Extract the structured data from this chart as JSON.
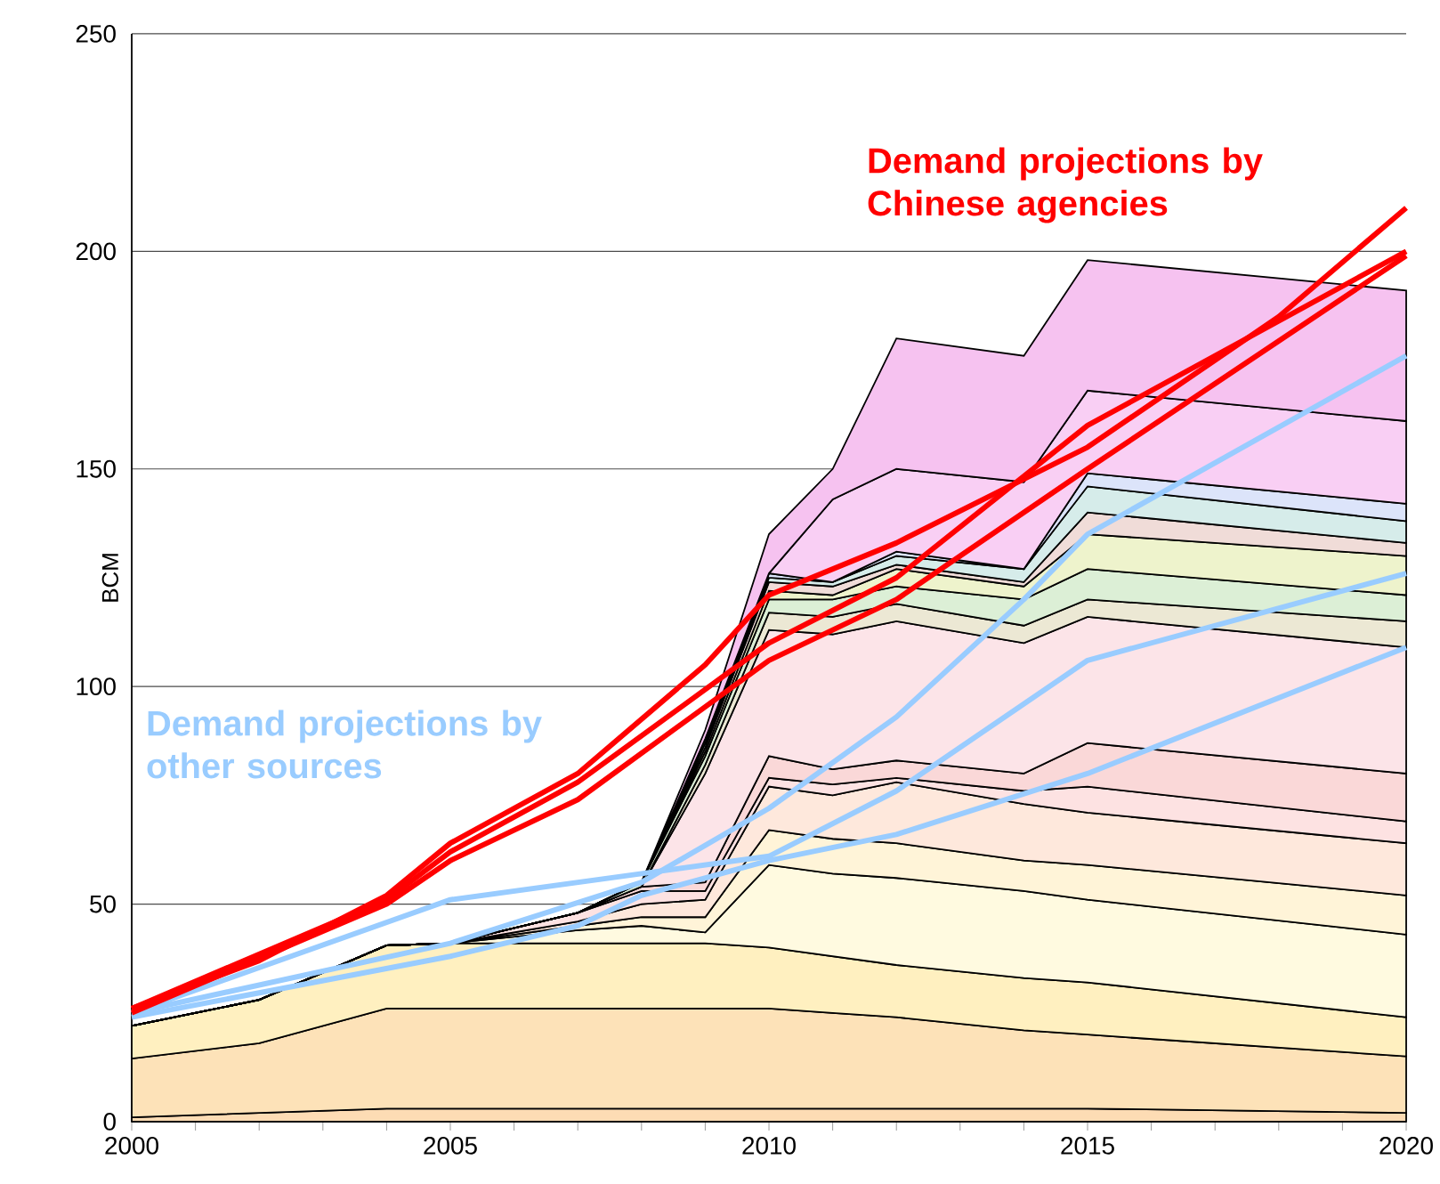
{
  "chart_data": {
    "type": "area",
    "stacked": true,
    "ylabel": "BCM",
    "annotations": [
      "Demand projections by Chinese agencies",
      "Demand projections by other sources"
    ],
    "x": [
      2000,
      2002,
      2004,
      2005,
      2007,
      2008,
      2009,
      2010,
      2011,
      2012,
      2014,
      2015,
      2020
    ],
    "xlim": [
      2000,
      2020
    ],
    "xticks": [
      2000,
      2005,
      2010,
      2015,
      2020
    ],
    "ylim": [
      0,
      250
    ],
    "yticks": [
      0,
      50,
      100,
      150,
      200,
      250
    ],
    "grid": "y",
    "series": [
      {
        "color": "#fddcb4",
        "values": [
          1,
          2,
          3,
          3,
          3,
          3,
          3,
          3,
          3,
          3,
          3,
          3,
          2
        ]
      },
      {
        "color": "#fde2b8",
        "values": [
          13.5,
          16,
          23,
          23,
          23,
          23,
          23,
          23,
          22,
          21,
          18,
          17,
          13
        ]
      },
      {
        "color": "#fff0c0",
        "values": [
          7.5,
          10,
          14.5,
          15,
          15,
          15,
          15,
          14,
          13,
          12,
          12,
          12,
          9
        ]
      },
      {
        "color": "#fffae0",
        "values": [
          0,
          0,
          0,
          0,
          3,
          4,
          2.5,
          19,
          19,
          20,
          20,
          19,
          19
        ]
      },
      {
        "color": "#fff4d8",
        "values": [
          0,
          0,
          0,
          0,
          1,
          2,
          3.5,
          8,
          8,
          8,
          7,
          8,
          9
        ]
      },
      {
        "color": "#fee8dc",
        "values": [
          0,
          0,
          0,
          0,
          1,
          3,
          4,
          10,
          10,
          14,
          13,
          12,
          12
        ]
      },
      {
        "color": "#fde2e2",
        "values": [
          0,
          0,
          0,
          0,
          2,
          3,
          2,
          2,
          2.5,
          1,
          3,
          6,
          5
        ]
      },
      {
        "color": "#fad8d8",
        "values": [
          0,
          0,
          0,
          0,
          0,
          1,
          2,
          5,
          3.5,
          4,
          4,
          10,
          11
        ]
      },
      {
        "color": "#fce4e8",
        "values": [
          0,
          0,
          0,
          0,
          0,
          0,
          25,
          29,
          31,
          32,
          30,
          29,
          29
        ]
      },
      {
        "color": "#ece8d4",
        "values": [
          0,
          0,
          0,
          0,
          0,
          0,
          2,
          4,
          4,
          4,
          4,
          4,
          6
        ]
      },
      {
        "color": "#dcefd6",
        "values": [
          0,
          0,
          0,
          0,
          0,
          1,
          2,
          3,
          4,
          4,
          6,
          7,
          6
        ]
      },
      {
        "color": "#eef3cc",
        "values": [
          0,
          0,
          0,
          0,
          0,
          0,
          1,
          2,
          1,
          4,
          3,
          8,
          9
        ]
      },
      {
        "color": "#f0dcd8",
        "values": [
          0,
          0,
          0,
          0,
          0,
          0,
          1,
          2,
          2,
          1,
          1,
          5,
          3
        ]
      },
      {
        "color": "#d6ecea",
        "values": [
          0,
          0,
          0,
          0,
          0,
          0,
          1,
          1,
          1,
          2,
          3,
          6,
          5
        ]
      },
      {
        "color": "#dce4fa",
        "values": [
          0,
          0,
          0,
          0,
          0,
          0,
          1,
          1,
          0,
          1,
          0,
          3,
          4
        ]
      },
      {
        "color": "#f9cff4",
        "values": [
          0,
          0,
          0,
          0,
          0,
          0,
          0,
          0,
          19,
          19,
          20,
          19,
          19
        ]
      },
      {
        "color": "#f6c2f0",
        "values": [
          0,
          0,
          0,
          0,
          0,
          0,
          2,
          9,
          7,
          30,
          29,
          30,
          30
        ]
      },
      {
        "type": "line",
        "color": "#99ccff",
        "x": [
          2000,
          2005,
          2008,
          2010,
          2012,
          2014,
          2015,
          2020
        ],
        "values": [
          25,
          41,
          55,
          72,
          93,
          120,
          135,
          176
        ]
      },
      {
        "type": "line",
        "color": "#99ccff",
        "x": [
          2000,
          2005,
          2008,
          2010,
          2012,
          2015,
          2020
        ],
        "values": [
          25,
          51,
          57,
          61,
          76,
          106,
          126
        ]
      },
      {
        "type": "line",
        "color": "#99ccff",
        "x": [
          2000,
          2005,
          2007,
          2008,
          2010,
          2012,
          2015,
          2020
        ],
        "values": [
          24,
          38,
          45,
          52,
          60,
          66,
          80,
          109
        ]
      },
      {
        "type": "line",
        "color": "#ff0000",
        "x": [
          2000,
          2002,
          2004,
          2005,
          2007,
          2009,
          2010,
          2012,
          2015,
          2018,
          2020
        ],
        "values": [
          26,
          37,
          52,
          64,
          80,
          105,
          121,
          133,
          155,
          185,
          210
        ]
      },
      {
        "type": "line",
        "color": "#ff0000",
        "x": [
          2000,
          2004,
          2005,
          2007,
          2010,
          2012,
          2015,
          2020
        ],
        "values": [
          26,
          51,
          62,
          78,
          110,
          125,
          160,
          200
        ]
      },
      {
        "type": "line",
        "color": "#ff0000",
        "x": [
          2000,
          2004,
          2005,
          2007,
          2010,
          2012,
          2015,
          2020
        ],
        "values": [
          25,
          50,
          60,
          74,
          106,
          120,
          150,
          199
        ]
      }
    ]
  }
}
